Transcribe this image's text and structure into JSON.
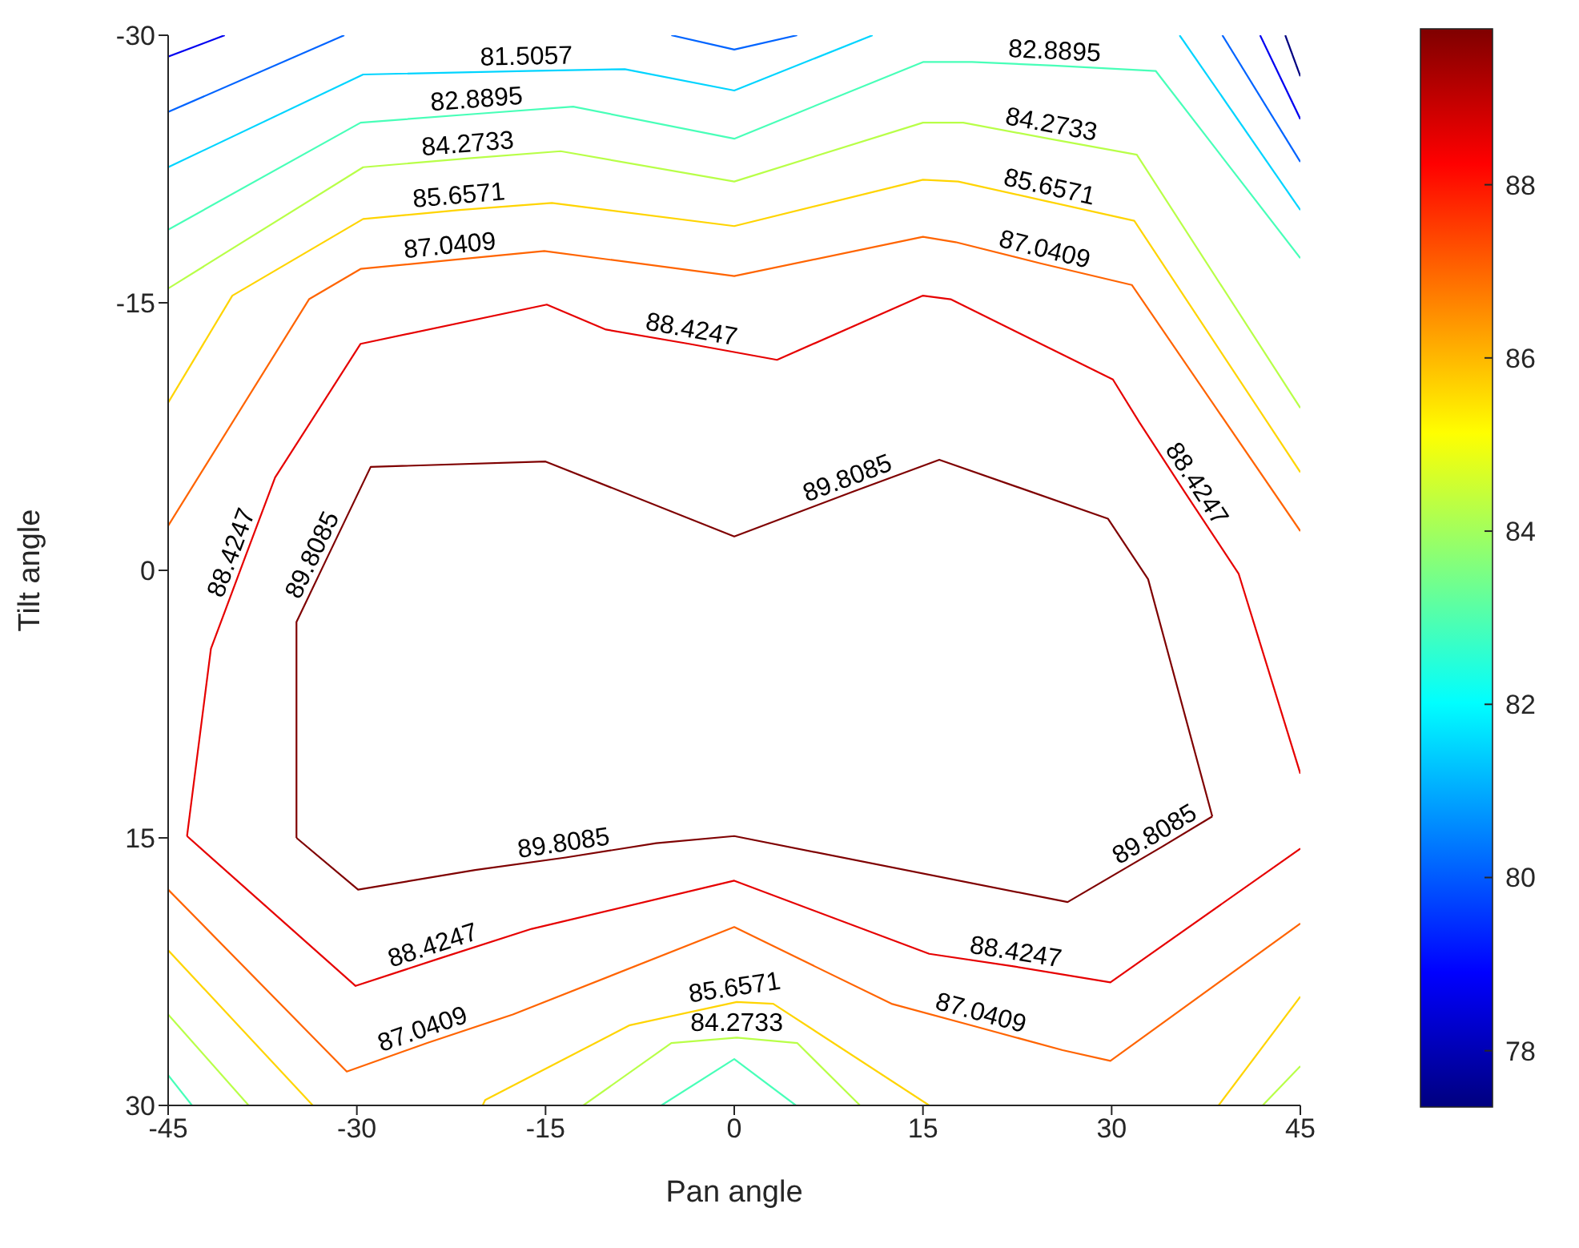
{
  "chart_data": {
    "type": "line",
    "xlabel": "Pan angle",
    "ylabel": "Tilt angle",
    "xlim": [
      -45,
      45
    ],
    "xticks": [
      -45,
      -30,
      -15,
      0,
      15,
      30,
      45
    ],
    "ylim": [
      30,
      -30
    ],
    "yticks": [
      -30,
      -15,
      0,
      15,
      30
    ],
    "clim": [
      77.35,
      89.8
    ],
    "cticks": [
      78,
      80,
      82,
      84,
      86,
      88
    ],
    "series": [
      {
        "color": "#7f0000",
        "x": [
          -34.8,
          -34.8,
          -32.5,
          -28.9,
          -15,
          0,
          9.4,
          16.3,
          29.7,
          32.9,
          38
        ],
        "values": [
          15,
          2.9,
          -0.5,
          -5.8,
          -6.1,
          -1.9,
          -4.4,
          -6.2,
          -2.9,
          0.5,
          13.8
        ]
      },
      {
        "color": "#7f0000",
        "x": [
          38,
          34,
          26.5,
          0,
          -6.2,
          -13.4,
          -20.6,
          -29.9,
          -34.8
        ],
        "values": [
          13.8,
          15.5,
          18.6,
          14.9,
          15.3,
          16.1,
          16.8,
          17.9,
          15
        ]
      },
      {
        "color": "#e60000",
        "x": [
          -43.5,
          -41.6,
          -38.9,
          -36.5,
          -29.7,
          -14.9,
          -10.2,
          -3.6,
          3.4,
          15,
          17.2,
          30.1,
          32.2,
          35.8,
          40.1,
          45
        ],
        "values": [
          14.9,
          4.4,
          -0.7,
          -5.2,
          -12.7,
          -14.9,
          -13.5,
          -12.7,
          -11.8,
          -15.4,
          -15.2,
          -10.7,
          -8.3,
          -4.4,
          0.2,
          11.4
        ]
      },
      {
        "color": "#e60000",
        "x": [
          45,
          29.9,
          22.2,
          15.5,
          0,
          -16.1,
          -23.6,
          -30.1,
          -43.5
        ],
        "values": [
          15.6,
          23.1,
          22.2,
          21.5,
          17.4,
          20.1,
          21.8,
          23.3,
          14.9
        ]
      },
      {
        "color": "#ff6400",
        "x": [
          -45,
          -33.8,
          -29.7,
          -22.5,
          -15.1,
          0,
          15,
          17.6,
          24.4,
          31.6,
          45
        ],
        "values": [
          -2.5,
          -15.2,
          -16.9,
          -17.4,
          -17.9,
          -16.5,
          -18.7,
          -18.4,
          -17.2,
          -16,
          -2.2
        ]
      },
      {
        "color": "#ff6400",
        "x": [
          45,
          29.9,
          26.1,
          19.3,
          12.5,
          0,
          -17.6,
          -24.4,
          -30.8,
          -45
        ],
        "values": [
          19.8,
          27.5,
          26.9,
          25.6,
          24.3,
          20,
          24.9,
          26.5,
          28.1,
          17.9
        ]
      },
      {
        "color": "#ffd400",
        "x": [
          -45,
          -39.9,
          -29.5,
          -21.8,
          -14.5,
          0,
          15,
          17.8,
          24.8,
          31.8,
          45
        ],
        "values": [
          -9.4,
          -15.4,
          -19.7,
          -20.2,
          -20.6,
          -19.3,
          -21.9,
          -21.8,
          -20.7,
          -19.6,
          -5.5
        ]
      },
      {
        "color": "#ffd400",
        "x": [
          45,
          38.5
        ],
        "values": [
          23.9,
          30
        ]
      },
      {
        "color": "#ffd400",
        "x": [
          15.5,
          3.1,
          0.2,
          -8.3,
          -19.8,
          -20
        ],
        "values": [
          30,
          24.3,
          24.2,
          25.5,
          29.7,
          30
        ]
      },
      {
        "color": "#ffd400",
        "x": [
          -33.5,
          -45
        ],
        "values": [
          30,
          21.3
        ]
      },
      {
        "color": "#b8ff48",
        "x": [
          -45,
          -29.5,
          -21.1,
          -13.8,
          0,
          15,
          18.2,
          25,
          32,
          45
        ],
        "values": [
          -15.8,
          -22.6,
          -23.1,
          -23.5,
          -21.8,
          -25.1,
          -25.1,
          -24.2,
          -23.3,
          -9.1
        ]
      },
      {
        "color": "#b8ff48",
        "x": [
          45,
          42
        ],
        "values": [
          27.8,
          30
        ]
      },
      {
        "color": "#b8ff48",
        "x": [
          10,
          5,
          0.2,
          -5,
          -12
        ],
        "values": [
          30,
          26.5,
          26.2,
          26.5,
          30
        ]
      },
      {
        "color": "#b8ff48",
        "x": [
          -38.6,
          -45
        ],
        "values": [
          30,
          24.9
        ]
      },
      {
        "color": "#48ffb8",
        "x": [
          -45,
          -29.7,
          -20.4,
          -12.8,
          0,
          15,
          18.9,
          25.4,
          33.5,
          45
        ],
        "values": [
          -19.1,
          -25.1,
          -25.6,
          -26,
          -24.2,
          -28.5,
          -28.5,
          -28.3,
          -28,
          -17.5
        ]
      },
      {
        "color": "#48ffb8",
        "x": [
          -5.8,
          0,
          4.9
        ],
        "values": [
          30,
          27.4,
          30
        ]
      },
      {
        "color": "#48ffb8",
        "x": [
          -43.1,
          -45
        ],
        "values": [
          30,
          28.3
        ]
      },
      {
        "color": "#00d4ff",
        "x": [
          -45,
          -29.5,
          -16.5,
          -8.7,
          0,
          11
        ],
        "values": [
          -22.6,
          -27.8,
          -28,
          -28.1,
          -26.9,
          -30
        ]
      },
      {
        "color": "#00d4ff",
        "x": [
          35.4,
          45
        ],
        "values": [
          -30,
          -20.2
        ]
      },
      {
        "color": "#0064ff",
        "x": [
          -45,
          -31
        ],
        "values": [
          -25.7,
          -30
        ]
      },
      {
        "color": "#0064ff",
        "x": [
          -5,
          0,
          5
        ],
        "values": [
          -30,
          -29.2,
          -30
        ]
      },
      {
        "color": "#0064ff",
        "x": [
          38.8,
          45
        ],
        "values": [
          -30,
          -22.9
        ]
      },
      {
        "color": "#0000f0",
        "x": [
          -45,
          -40.5
        ],
        "values": [
          -28.8,
          -30
        ]
      },
      {
        "color": "#0000f0",
        "x": [
          41.8,
          45
        ],
        "values": [
          -30,
          -25.3
        ]
      },
      {
        "color": "#000080",
        "x": [
          43.8,
          45
        ],
        "values": [
          -30,
          -27.7
        ]
      }
    ],
    "annotations": [
      {
        "text": "81.5057",
        "x": -16.5,
        "y": -28
      },
      {
        "text": "82.8895",
        "x": -20.4,
        "y": -25.6
      },
      {
        "text": "84.2733",
        "x": -21.1,
        "y": -23.1
      },
      {
        "text": "85.6571",
        "x": -21.8,
        "y": -20.2
      },
      {
        "text": "87.0409",
        "x": -22.5,
        "y": -17.4
      },
      {
        "text": "88.4247",
        "x": -3.6,
        "y": -12.7
      },
      {
        "text": "82.8895",
        "x": 25.4,
        "y": -28.3
      },
      {
        "text": "84.2733",
        "x": 25,
        "y": -24.2
      },
      {
        "text": "85.6571",
        "x": 24.8,
        "y": -20.7
      },
      {
        "text": "87.0409",
        "x": 24.4,
        "y": -17.2
      },
      {
        "text": "88.4247",
        "x": 35.8,
        "y": -4.4
      },
      {
        "text": "89.8085",
        "x": 9.4,
        "y": -4.4
      },
      {
        "text": "88.4247",
        "x": -38.9,
        "y": -0.7
      },
      {
        "text": "89.8085",
        "x": -32.5,
        "y": -0.5
      },
      {
        "text": "89.8085",
        "x": -13.4,
        "y": 16.1
      },
      {
        "text": "88.4247",
        "x": -23.6,
        "y": 21.8
      },
      {
        "text": "87.0409",
        "x": -24.4,
        "y": 26.5
      },
      {
        "text": "85.6571",
        "x": 0.2,
        "y": 24.2
      },
      {
        "text": "84.2733",
        "x": 0.2,
        "y": 26.2
      },
      {
        "text": "89.8085",
        "x": 34,
        "y": 15.5
      },
      {
        "text": "88.4247",
        "x": 22.2,
        "y": 22.2
      },
      {
        "text": "87.0409",
        "x": 19.3,
        "y": 25.6
      }
    ]
  }
}
